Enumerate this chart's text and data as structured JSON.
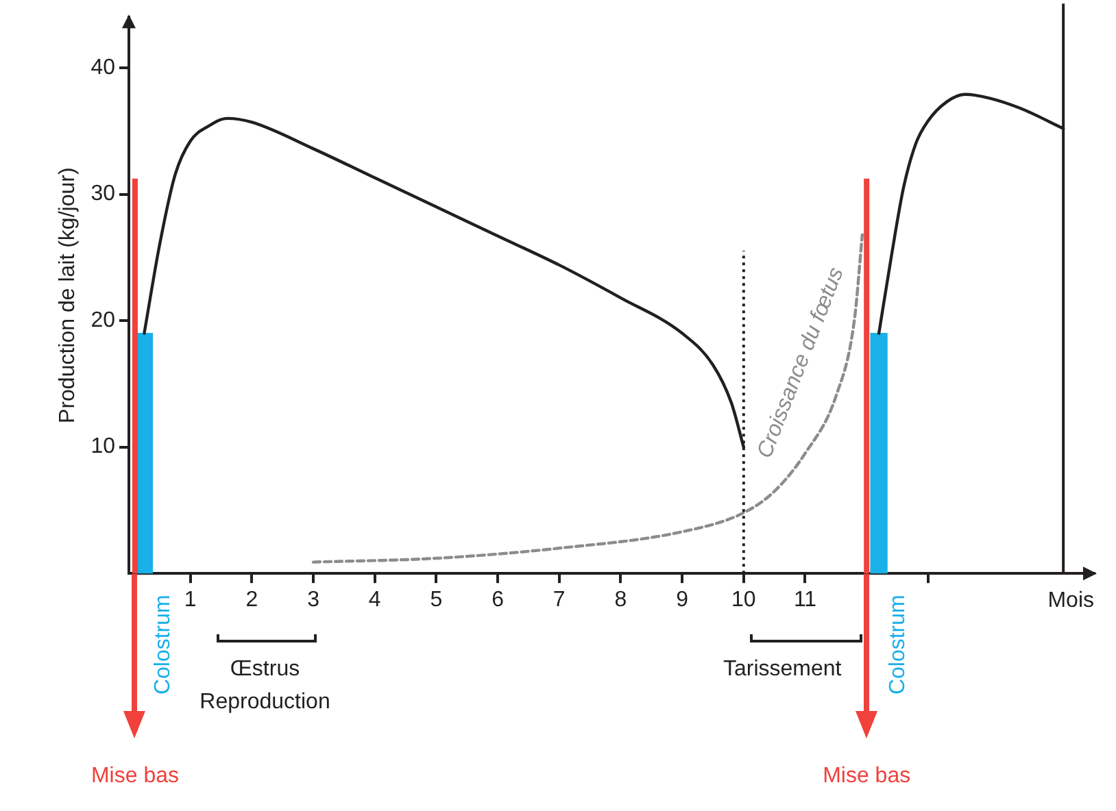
{
  "chart_data": {
    "type": "line",
    "xlabel": "Mois",
    "ylabel": "Production de lait (kg/jour)",
    "xlim": [
      0,
      15.7
    ],
    "ylim": [
      0,
      44
    ],
    "xticks": [
      1,
      2,
      3,
      4,
      5,
      6,
      7,
      8,
      9,
      10,
      11,
      {
        "value": 12,
        "label": null
      },
      {
        "value": 13,
        "label": null
      }
    ],
    "yticks": [
      10,
      20,
      30,
      40
    ],
    "grid": false,
    "legend": false,
    "marker": "none",
    "series": [
      {
        "color": "#231f20",
        "x": [
          0.25,
          0.5,
          0.75,
          1.0,
          1.3,
          1.6,
          2.0,
          3.0,
          4.0,
          5.0,
          6.0,
          7.0,
          8.0,
          9.0,
          9.5,
          9.8,
          10.0
        ],
        "values": [
          19,
          26,
          31.5,
          34.2,
          35.4,
          36,
          35.7,
          33.6,
          31.3,
          29,
          26.7,
          24.4,
          21.8,
          19,
          16.5,
          13.5,
          10
        ]
      },
      {
        "color": "#231f20",
        "x": [
          12.2,
          12.4,
          12.6,
          12.8,
          13.0,
          13.3,
          13.6,
          14.0,
          14.5,
          15.2
        ],
        "values": [
          19,
          25,
          30.5,
          34,
          35.8,
          37.3,
          37.9,
          37.6,
          36.8,
          35.2
        ]
      },
      {
        "name": "Croissance du fœtus",
        "color": "#8c8c8c",
        "line_style": "dashed",
        "x": [
          3,
          5,
          7,
          9,
          10,
          10.5,
          11,
          11.5,
          11.8,
          11.93
        ],
        "values": [
          0.9,
          1.2,
          2,
          3.3,
          4.8,
          6.5,
          9.5,
          14,
          20,
          26.8
        ]
      },
      {
        "type": "bar",
        "name": "Colostrum",
        "color": "#1ab0e8",
        "x": [
          0.25,
          12.2
        ],
        "values": [
          19,
          19
        ]
      }
    ],
    "ref_lines": [
      {
        "axis": "x",
        "value": 0.1,
        "label": "Mise bas",
        "color": "#f0413c"
      },
      {
        "axis": "x",
        "value": 12,
        "label": "Mise bas",
        "color": "#f0413c"
      },
      {
        "axis": "x",
        "value": 10,
        "line_style": "dotted",
        "color": "#231f20"
      },
      {
        "axis": "x",
        "value": 15.2,
        "color": "#231f20"
      }
    ],
    "annotations": [
      "Œstrus",
      "Reproduction",
      "Tarissement"
    ]
  }
}
